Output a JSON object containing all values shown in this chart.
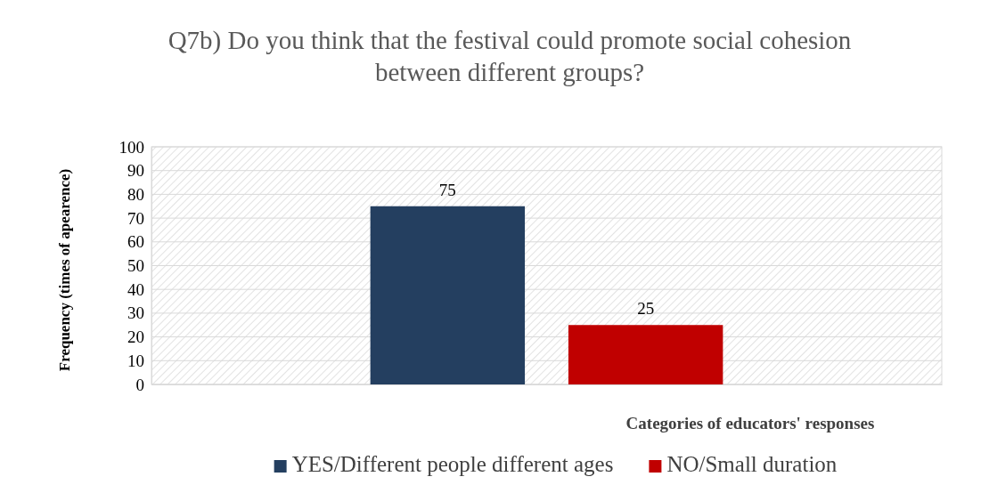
{
  "chart_data": {
    "type": "bar",
    "title": "Q7b) Do you think that the festival could promote social cohesion between different groups?",
    "xlabel": "Categories of educators' responses",
    "ylabel": "Frequency (times of apearence)",
    "categories": [
      null
    ],
    "series": [
      {
        "name": "YES/Different people different ages",
        "color": "#243f60",
        "values": [
          75
        ]
      },
      {
        "name": "NO/Small duration",
        "color": "#c00000",
        "values": [
          25
        ]
      }
    ],
    "ylim": [
      0,
      100
    ],
    "yticks": [
      0,
      10,
      20,
      30,
      40,
      50,
      60,
      70,
      80,
      90,
      100
    ],
    "grid": "y",
    "legend": "bottom",
    "data_labels": true
  }
}
